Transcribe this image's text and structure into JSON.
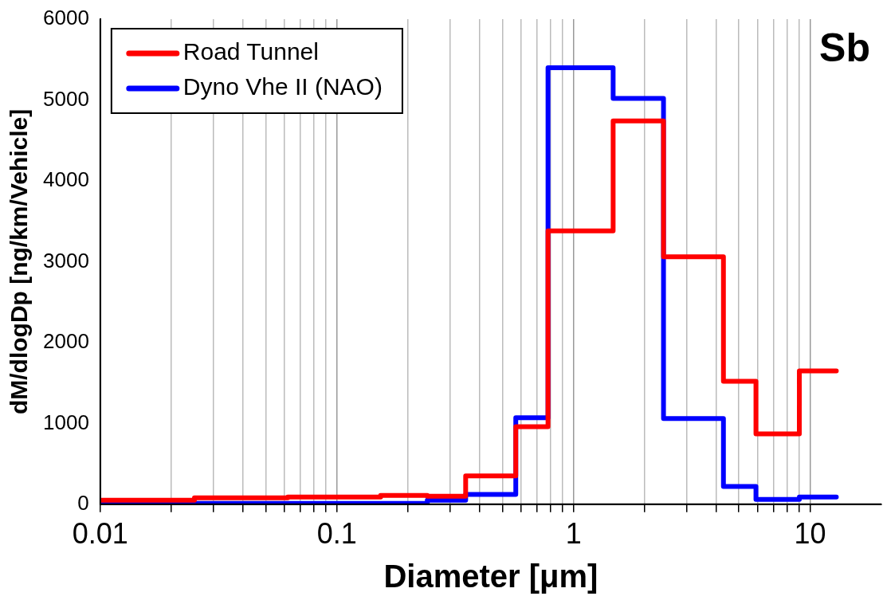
{
  "chart_data": {
    "type": "step",
    "title": "Sb",
    "xlabel": "Diameter [μm]",
    "ylabel": "dM/dlogDp [ng/km/Vehicle]",
    "x": [
      0.01,
      0.025,
      0.062,
      0.153,
      0.241,
      0.35,
      0.57,
      0.78,
      1.47,
      2.4,
      4.3,
      5.9,
      9,
      12.9
    ],
    "series": [
      {
        "name": "Road Tunnel",
        "color": "#ff0000",
        "values": [
          50,
          80,
          90,
          110,
          100,
          350,
          960,
          3380,
          4740,
          3060,
          1520,
          870,
          1650,
          1650
        ]
      },
      {
        "name": "Dyno Vhe II (NAO)",
        "color": "#0000ff",
        "values": [
          10,
          10,
          10,
          10,
          50,
          120,
          1070,
          5400,
          5020,
          1060,
          220,
          60,
          90,
          90
        ]
      }
    ],
    "log": "x",
    "xlim": [
      0.01,
      20
    ],
    "xticks": [
      0.01,
      {
        "value": 0.02,
        "label": null
      },
      {
        "value": 0.03,
        "label": null
      },
      {
        "value": 0.04,
        "label": null
      },
      {
        "value": 0.05,
        "label": null
      },
      {
        "value": 0.06,
        "label": null
      },
      {
        "value": 0.07,
        "label": null
      },
      {
        "value": 0.08,
        "label": null
      },
      {
        "value": 0.09,
        "label": null
      },
      0.1,
      {
        "value": 0.2,
        "label": null
      },
      {
        "value": 0.3,
        "label": null
      },
      {
        "value": 0.4,
        "label": null
      },
      {
        "value": 0.5,
        "label": null
      },
      {
        "value": 0.6,
        "label": null
      },
      {
        "value": 0.7,
        "label": null
      },
      {
        "value": 0.8,
        "label": null
      },
      {
        "value": 0.9,
        "label": null
      },
      1,
      {
        "value": 2,
        "label": null
      },
      {
        "value": 3,
        "label": null
      },
      {
        "value": 4,
        "label": null
      },
      {
        "value": 5,
        "label": null
      },
      {
        "value": 6,
        "label": null
      },
      {
        "value": 7,
        "label": null
      },
      {
        "value": 8,
        "label": null
      },
      {
        "value": 9,
        "label": null
      },
      10
    ],
    "ylim": [
      0,
      6000
    ],
    "yticks": [
      0,
      1000,
      2000,
      3000,
      4000,
      5000,
      6000
    ],
    "grid": "x",
    "legend": "top left",
    "line_style": "solid",
    "marker": "none"
  }
}
